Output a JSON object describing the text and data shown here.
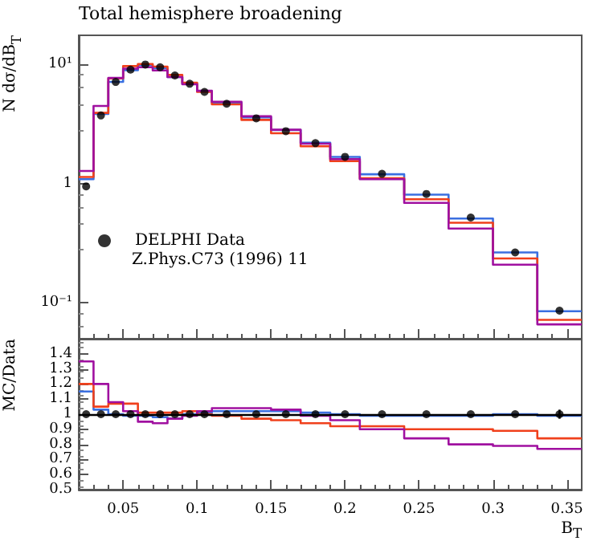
{
  "chart_data": [
    {
      "type": "histogram",
      "title": "Total hemisphere broadening",
      "ylabel": "N dσ/dB$_{T}$",
      "bins": [
        0.02,
        0.03,
        0.04,
        0.05,
        0.06,
        0.07,
        0.08,
        0.09,
        0.1,
        0.11,
        0.13,
        0.15,
        0.17,
        0.19,
        0.21,
        0.24,
        0.27,
        0.3,
        0.33,
        0.36
      ],
      "series": [
        {
          "name": "DELPHI Data",
          "type": "scatter",
          "color": "#000000",
          "x": [
            0.025,
            0.035,
            0.045,
            0.055,
            0.065,
            0.075,
            0.085,
            0.095,
            0.105,
            0.12,
            0.14,
            0.16,
            0.18,
            0.2,
            0.225,
            0.255,
            0.285,
            0.315,
            0.345
          ],
          "values": [
            0.95,
            3.74,
            7.15,
            9.07,
            10,
            9.5,
            8.1,
            6.9,
            5.9,
            4.69,
            3.54,
            2.76,
            2.19,
            1.68,
            1.21,
            0.82,
            0.52,
            0.265,
            0.086
          ]
        },
        {
          "color": "#3b6fe0",
          "values": [
            1.09,
            3.85,
            7.15,
            8.98,
            9.9,
            9.31,
            7.86,
            6.9,
            5.96,
            4.78,
            3.61,
            2.82,
            2.21,
            1.68,
            1.2,
            0.81,
            0.51,
            0.265,
            0.085
          ]
        },
        {
          "color": "#f0401c",
          "values": [
            1.14,
            3.93,
            7.65,
            9.7,
            10.1,
            9.6,
            8.18,
            7.04,
            5.9,
            4.64,
            3.43,
            2.65,
            2.06,
            1.55,
            1.11,
            0.74,
            0.47,
            0.236,
            0.072
          ]
        },
        {
          "color": "#a010a0",
          "values": [
            1.28,
            4.49,
            7.72,
            9.25,
            9.5,
            8.93,
            7.86,
            6.83,
            6.02,
            4.88,
            3.68,
            2.84,
            2.17,
            1.61,
            1.09,
            0.69,
            0.42,
            0.209,
            0.066
          ]
        }
      ],
      "log": "y",
      "ylim": [
        0.05,
        17.6
      ],
      "yticks": [
        {
          "value": 0.1,
          "label": "10⁻¹"
        },
        {
          "value": 1,
          "label": "1"
        },
        {
          "value": 10,
          "label": "10¹"
        }
      ],
      "xlim": [
        0.02,
        0.36
      ],
      "xticks": [
        {
          "value": 0.05,
          "label": null
        },
        {
          "value": 0.1,
          "label": null
        },
        {
          "value": 0.15,
          "label": null
        },
        {
          "value": 0.2,
          "label": null
        },
        {
          "value": 0.25,
          "label": null
        },
        {
          "value": 0.3,
          "label": null
        },
        {
          "value": 0.35,
          "label": null
        }
      ],
      "tick_labels": "y",
      "legend": "bottom left",
      "annotations": [
        "Z.Phys.C73 (1996) 11"
      ]
    },
    {
      "type": "histogram",
      "ylabel": "MC/Data",
      "xlabel": "B$_{T}$",
      "bins": [
        0.02,
        0.03,
        0.04,
        0.05,
        0.06,
        0.07,
        0.08,
        0.09,
        0.1,
        0.11,
        0.13,
        0.15,
        0.17,
        0.19,
        0.21,
        0.24,
        0.27,
        0.3,
        0.33,
        0.36
      ],
      "series": [
        {
          "type": "scatter",
          "color": "#000000",
          "x": [
            0.025,
            0.035,
            0.045,
            0.055,
            0.065,
            0.075,
            0.085,
            0.095,
            0.105,
            0.12,
            0.14,
            0.16,
            0.18,
            0.2,
            0.225,
            0.255,
            0.285,
            0.315,
            0.345
          ],
          "values": [
            1,
            1,
            1,
            1,
            1,
            1,
            1,
            1,
            1,
            1,
            1,
            1,
            1,
            1,
            1,
            1,
            1,
            1,
            1
          ],
          "errors": [
            null,
            null,
            null,
            null,
            null,
            null,
            null,
            null,
            null,
            null,
            null,
            null,
            null,
            null,
            null,
            null,
            null,
            null,
            0.03
          ]
        },
        {
          "color": "#3b6fe0",
          "values": [
            1.15,
            1.03,
            1.0,
            0.99,
            0.99,
            0.98,
            0.97,
            1.0,
            1.01,
            1.02,
            1.02,
            1.02,
            1.01,
            1.0,
            0.99,
            0.99,
            0.99,
            1.0,
            0.99
          ]
        },
        {
          "color": "#f0401c",
          "values": [
            1.2,
            1.05,
            1.07,
            1.07,
            1.01,
            1.01,
            1.01,
            1.02,
            1.0,
            0.99,
            0.97,
            0.96,
            0.94,
            0.92,
            0.92,
            0.9,
            0.9,
            0.89,
            0.84
          ]
        },
        {
          "color": "#a010a0",
          "values": [
            1.35,
            1.2,
            1.08,
            1.02,
            0.95,
            0.94,
            0.97,
            0.99,
            1.02,
            1.04,
            1.04,
            1.03,
            0.99,
            0.96,
            0.9,
            0.84,
            0.8,
            0.79,
            0.77
          ]
        }
      ],
      "ref_lines": [
        {
          "axis": "y",
          "value": 1,
          "color": "#000000"
        }
      ],
      "ylim": [
        0.5,
        1.5
      ],
      "yticks": [
        0.5,
        0.6,
        0.7,
        0.8,
        0.9,
        1,
        1.1,
        1.2,
        1.3,
        1.4
      ],
      "xlim": [
        0.02,
        0.36
      ],
      "xticks": [
        0.05,
        0.1,
        0.15,
        0.2,
        0.25,
        0.3,
        0.35
      ]
    }
  ]
}
